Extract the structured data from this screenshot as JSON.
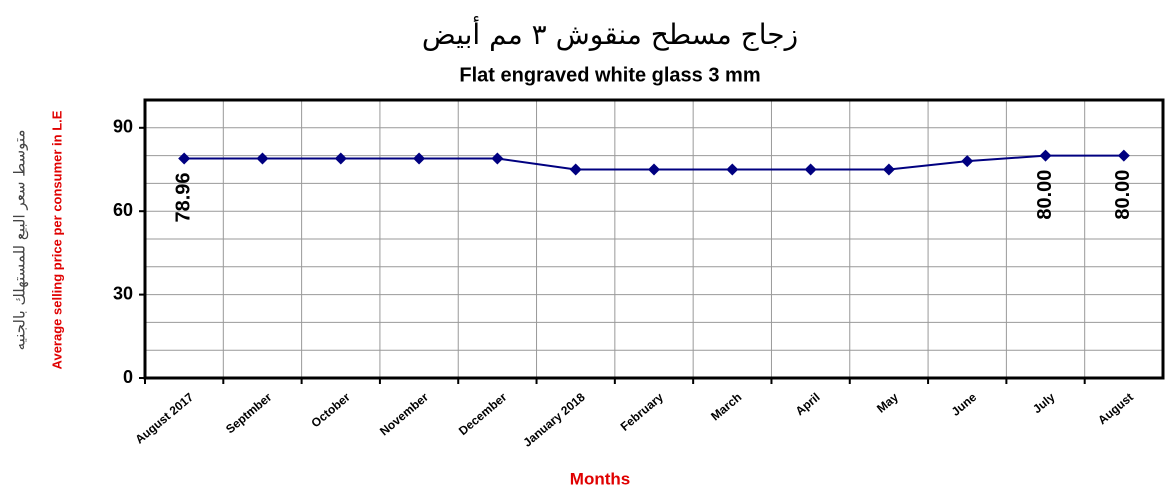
{
  "chart_data": {
    "type": "line",
    "title": "زجاج مسطح منقوش ٣ مم أبيض",
    "subtitle": "Flat engraved white glass 3 mm",
    "y_label_arabic": "متوسط سعر البيع للمستهلك بالجنيه",
    "y_label": "Average selling price per consumer in L.E",
    "x_label": "Months",
    "categories": [
      "August 2017",
      "Septmber",
      "October",
      "November",
      "December",
      "January 2018",
      "February",
      "March",
      "April",
      "May",
      "June",
      "July",
      "August"
    ],
    "series": [
      {
        "name": "Flat engraved white glass 3 mm",
        "color": "#000080",
        "values": [
          78.96,
          78.96,
          78.96,
          78.96,
          78.96,
          75,
          75,
          75,
          75,
          75,
          78,
          80,
          80
        ],
        "value_labels": [
          "78.96",
          null,
          null,
          null,
          null,
          null,
          null,
          null,
          null,
          null,
          null,
          "80.00",
          "80.00"
        ]
      }
    ],
    "ylim": [
      0,
      100
    ],
    "yticks": [
      0,
      30,
      60,
      90
    ],
    "yminorticks": [
      10,
      20,
      40,
      50,
      70,
      80,
      100
    ],
    "grid": true
  }
}
